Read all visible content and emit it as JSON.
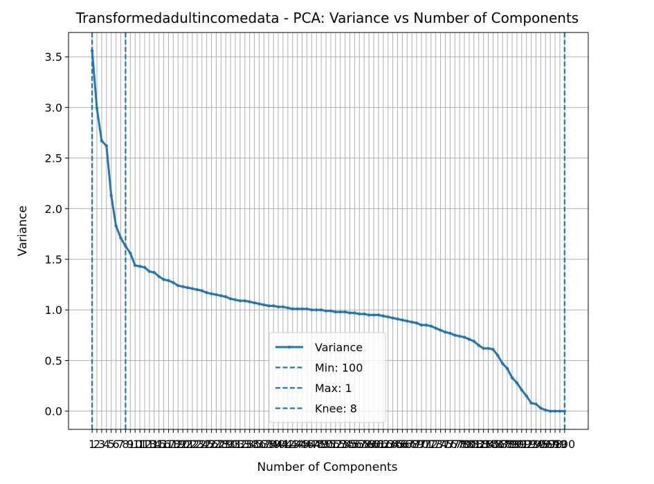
{
  "chart_data": {
    "type": "line",
    "title": "Transformedadultincomedata - PCA: Variance vs Number of Components",
    "xlabel": "Number of Components",
    "ylabel": "Variance",
    "xlim": [
      -3.95,
      104.95
    ],
    "ylim": [
      -0.18,
      3.74
    ],
    "yticks": [
      0.0,
      0.5,
      1.0,
      1.5,
      2.0,
      2.5,
      3.0,
      3.5
    ],
    "ytick_labels": [
      "0.0",
      "0.5",
      "1.0",
      "1.5",
      "2.0",
      "2.5",
      "3.0",
      "3.5"
    ],
    "xticks": [
      1,
      2,
      3,
      4,
      5,
      6,
      7,
      8,
      9,
      10,
      11,
      12,
      13,
      14,
      15,
      16,
      17,
      18,
      19,
      20,
      21,
      22,
      23,
      24,
      25,
      26,
      27,
      28,
      29,
      30,
      31,
      32,
      33,
      34,
      35,
      36,
      37,
      38,
      39,
      40,
      41,
      42,
      43,
      44,
      45,
      46,
      47,
      48,
      49,
      50,
      51,
      52,
      53,
      54,
      55,
      56,
      57,
      58,
      59,
      60,
      61,
      62,
      63,
      64,
      65,
      66,
      67,
      68,
      69,
      70,
      71,
      72,
      73,
      74,
      75,
      76,
      77,
      78,
      79,
      80,
      81,
      82,
      83,
      84,
      85,
      86,
      87,
      88,
      89,
      90,
      91,
      92,
      93,
      94,
      95,
      96,
      97,
      98,
      99,
      100
    ],
    "grid": true,
    "color": "#1f77b4",
    "series": [
      {
        "name": "Variance",
        "x": [
          1,
          2,
          3,
          4,
          5,
          6,
          7,
          8,
          9,
          10,
          11,
          12,
          13,
          14,
          15,
          16,
          17,
          18,
          19,
          20,
          21,
          22,
          23,
          24,
          25,
          26,
          27,
          28,
          29,
          30,
          31,
          32,
          33,
          34,
          35,
          36,
          37,
          38,
          39,
          40,
          41,
          42,
          43,
          44,
          45,
          46,
          47,
          48,
          49,
          50,
          51,
          52,
          53,
          54,
          55,
          56,
          57,
          58,
          59,
          60,
          61,
          62,
          63,
          64,
          65,
          66,
          67,
          68,
          69,
          70,
          71,
          72,
          73,
          74,
          75,
          76,
          77,
          78,
          79,
          80,
          81,
          82,
          83,
          84,
          85,
          86,
          87,
          88,
          89,
          90,
          91,
          92,
          93,
          94,
          95,
          96,
          97,
          98,
          99,
          100
        ],
        "values": [
          3.56,
          2.99,
          2.67,
          2.62,
          2.13,
          1.83,
          1.71,
          1.63,
          1.56,
          1.44,
          1.43,
          1.42,
          1.38,
          1.37,
          1.33,
          1.3,
          1.29,
          1.27,
          1.24,
          1.23,
          1.22,
          1.21,
          1.2,
          1.19,
          1.17,
          1.16,
          1.15,
          1.14,
          1.13,
          1.11,
          1.1,
          1.09,
          1.09,
          1.08,
          1.07,
          1.06,
          1.05,
          1.04,
          1.04,
          1.03,
          1.03,
          1.02,
          1.01,
          1.01,
          1.01,
          1.01,
          1.0,
          1.0,
          1.0,
          0.99,
          0.99,
          0.98,
          0.98,
          0.98,
          0.97,
          0.97,
          0.96,
          0.96,
          0.95,
          0.95,
          0.95,
          0.94,
          0.93,
          0.92,
          0.91,
          0.9,
          0.89,
          0.88,
          0.87,
          0.85,
          0.85,
          0.84,
          0.82,
          0.8,
          0.78,
          0.77,
          0.75,
          0.74,
          0.73,
          0.71,
          0.69,
          0.65,
          0.62,
          0.62,
          0.61,
          0.55,
          0.47,
          0.42,
          0.33,
          0.28,
          0.21,
          0.15,
          0.08,
          0.07,
          0.03,
          0.01,
          0.0,
          0.0,
          0.0,
          0.0
        ]
      }
    ],
    "vlines": [
      {
        "name": "Min: 100",
        "x": 100
      },
      {
        "name": "Max: 1",
        "x": 1
      },
      {
        "name": "Knee: 8",
        "x": 8
      }
    ],
    "legend": {
      "placement": "lower center",
      "entries": [
        "Variance",
        "Min: 100",
        "Max: 1",
        "Knee: 8"
      ]
    }
  }
}
